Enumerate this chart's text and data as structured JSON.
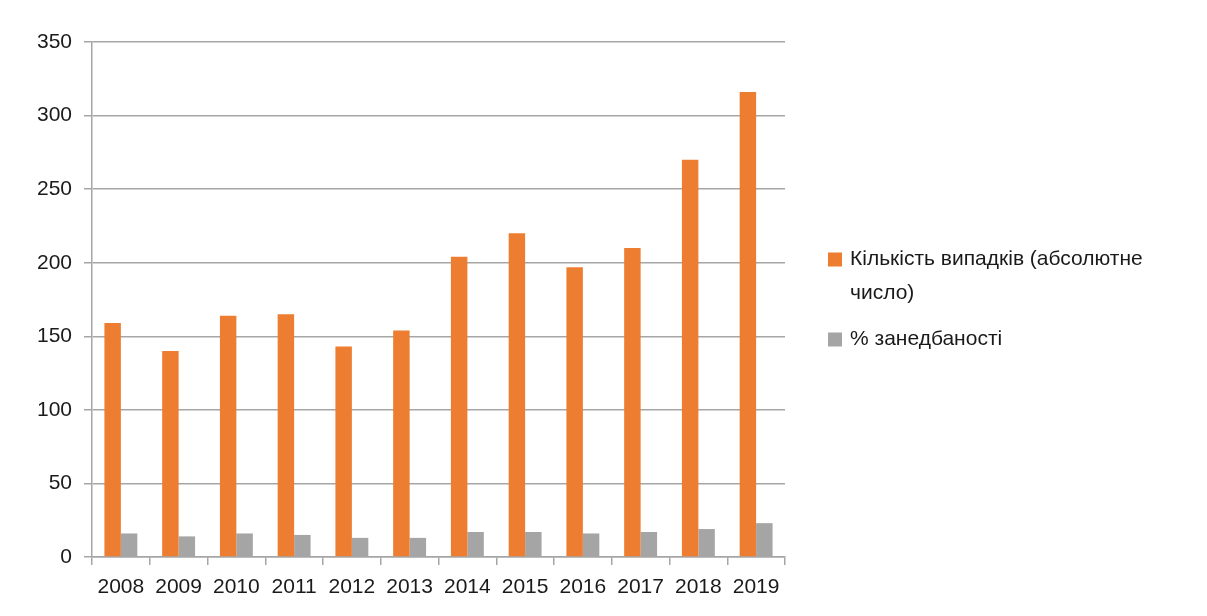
{
  "chart_data": {
    "type": "bar",
    "categories": [
      "2008",
      "2009",
      "2010",
      "2011",
      "2012",
      "2013",
      "2014",
      "2015",
      "2016",
      "2017",
      "2018",
      "2019"
    ],
    "series": [
      {
        "name": "Кількість випадків (абсолютне число)",
        "color": "#ed7d31",
        "values": [
          159,
          140,
          164,
          165,
          143,
          154,
          204,
          220,
          197,
          210,
          270,
          316
        ]
      },
      {
        "name": "% занедбаності",
        "color": "#a5a5a5",
        "values": [
          16,
          14,
          16,
          15,
          13,
          13,
          17,
          17,
          16,
          17,
          19,
          23
        ]
      }
    ],
    "ylim": [
      0,
      350
    ],
    "yticks": [
      0,
      50,
      100,
      150,
      200,
      250,
      300,
      350
    ],
    "grid": "y",
    "legend": "right"
  }
}
